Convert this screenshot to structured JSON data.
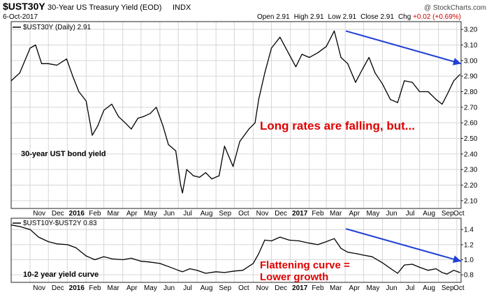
{
  "header": {
    "symbol": "$UST30Y",
    "name": "30-Year US Treasury Yield (EOD)",
    "index": "INDX",
    "date": "6-Oct-2017",
    "watermark": "@ StockCharts.com",
    "ohlc": [
      {
        "label": "Open",
        "value": "2.91"
      },
      {
        "label": "High",
        "value": "2.91"
      },
      {
        "label": "Low",
        "value": "2.91"
      },
      {
        "label": "Close",
        "value": "2.91"
      },
      {
        "label": "Chg",
        "value": "+0.02 (+0.69%)",
        "color": "#cc0000"
      }
    ]
  },
  "colors": {
    "price_line": "#000000",
    "trend_arrow": "#1f3fd6",
    "annotation_text": "#e00000",
    "grid": "#d6d6d6",
    "frame": "#222222"
  },
  "chart_data": [
    {
      "type": "line",
      "legend": "$UST30Y (Daily) 2.91",
      "annotation": "Long rates are falling, but...",
      "label": "30-year UST bond yield",
      "x_tick_labels": [
        "Nov",
        "Dec",
        "2016",
        "Feb",
        "Mar",
        "Apr",
        "May",
        "Jun",
        "Jul",
        "Aug",
        "Sep",
        "Oct",
        "Nov",
        "Dec",
        "2017",
        "Feb",
        "Mar",
        "Apr",
        "May",
        "Jun",
        "Jul",
        "Aug",
        "Sep",
        "Oct"
      ],
      "bold_x_ticks": [
        "2016",
        "2017"
      ],
      "y_tick_labels": [
        "2.10",
        "2.20",
        "2.30",
        "2.40",
        "2.50",
        "2.60",
        "2.70",
        "2.80",
        "2.90",
        "3.00",
        "3.10",
        "3.20"
      ],
      "ylim": [
        2.05,
        3.25
      ],
      "grid": true,
      "x": [
        "2015-10-01",
        "2015-10-15",
        "2015-11-01",
        "2015-11-10",
        "2015-11-20",
        "2015-12-01",
        "2015-12-15",
        "2015-12-31",
        "2016-01-10",
        "2016-01-20",
        "2016-02-01",
        "2016-02-11",
        "2016-02-20",
        "2016-03-01",
        "2016-03-14",
        "2016-03-25",
        "2016-04-05",
        "2016-04-15",
        "2016-04-26",
        "2016-05-05",
        "2016-05-16",
        "2016-05-26",
        "2016-06-06",
        "2016-06-15",
        "2016-06-27",
        "2016-07-05",
        "2016-07-08",
        "2016-07-15",
        "2016-07-26",
        "2016-08-05",
        "2016-08-15",
        "2016-08-25",
        "2016-09-06",
        "2016-09-15",
        "2016-09-29",
        "2016-10-10",
        "2016-10-25",
        "2016-11-04",
        "2016-11-10",
        "2016-11-20",
        "2016-12-01",
        "2016-12-15",
        "2016-12-30",
        "2017-01-10",
        "2017-01-20",
        "2017-02-01",
        "2017-02-15",
        "2017-03-01",
        "2017-03-14",
        "2017-03-25",
        "2017-04-05",
        "2017-04-18",
        "2017-04-30",
        "2017-05-10",
        "2017-05-20",
        "2017-06-01",
        "2017-06-14",
        "2017-06-26",
        "2017-07-07",
        "2017-07-20",
        "2017-08-01",
        "2017-08-15",
        "2017-08-28",
        "2017-09-07",
        "2017-09-15",
        "2017-09-26",
        "2017-10-06"
      ],
      "values": [
        2.87,
        2.92,
        3.08,
        3.1,
        2.98,
        2.98,
        2.97,
        3.01,
        2.9,
        2.8,
        2.74,
        2.52,
        2.58,
        2.68,
        2.72,
        2.64,
        2.6,
        2.56,
        2.63,
        2.64,
        2.66,
        2.7,
        2.58,
        2.46,
        2.42,
        2.2,
        2.15,
        2.3,
        2.26,
        2.25,
        2.28,
        2.24,
        2.26,
        2.45,
        2.32,
        2.48,
        2.56,
        2.6,
        2.75,
        2.92,
        3.08,
        3.15,
        3.04,
        2.96,
        3.04,
        3.02,
        3.05,
        3.09,
        3.19,
        3.02,
        2.98,
        2.86,
        2.95,
        3.02,
        2.92,
        2.85,
        2.75,
        2.73,
        2.87,
        2.86,
        2.8,
        2.8,
        2.75,
        2.72,
        2.78,
        2.87,
        2.91
      ],
      "trend_line": {
        "from": {
          "x": "2017-04-02",
          "y": 3.19
        },
        "to": {
          "x": "2017-10-08",
          "y": 2.98
        }
      }
    },
    {
      "type": "line",
      "legend": "$UST10Y-$UST2Y 0.83",
      "annotation": [
        "Flattening curve =",
        "Lower growth"
      ],
      "label": "10-2 year yield curve",
      "y_tick_labels": [
        "0.8",
        "1.0",
        "1.2",
        "1.4"
      ],
      "ylim": [
        0.7,
        1.55
      ],
      "grid": true,
      "x": [
        "2015-10-01",
        "2015-10-15",
        "2015-11-01",
        "2015-11-15",
        "2015-12-01",
        "2015-12-15",
        "2016-01-01",
        "2016-01-15",
        "2016-02-01",
        "2016-02-15",
        "2016-03-01",
        "2016-03-15",
        "2016-04-01",
        "2016-04-15",
        "2016-05-01",
        "2016-05-15",
        "2016-06-01",
        "2016-06-15",
        "2016-07-01",
        "2016-07-08",
        "2016-07-20",
        "2016-08-01",
        "2016-08-15",
        "2016-09-01",
        "2016-09-15",
        "2016-10-01",
        "2016-10-15",
        "2016-11-01",
        "2016-11-10",
        "2016-11-20",
        "2016-12-01",
        "2016-12-15",
        "2016-12-30",
        "2017-01-15",
        "2017-02-01",
        "2017-02-15",
        "2017-03-01",
        "2017-03-14",
        "2017-03-25",
        "2017-04-05",
        "2017-04-20",
        "2017-05-01",
        "2017-05-15",
        "2017-06-01",
        "2017-06-15",
        "2017-06-26",
        "2017-07-07",
        "2017-07-20",
        "2017-08-01",
        "2017-08-15",
        "2017-08-28",
        "2017-09-07",
        "2017-09-15",
        "2017-09-26",
        "2017-10-06"
      ],
      "values": [
        1.46,
        1.44,
        1.4,
        1.3,
        1.24,
        1.21,
        1.2,
        1.16,
        1.05,
        1.0,
        1.04,
        1.01,
        1.0,
        1.02,
        0.98,
        0.97,
        0.95,
        0.91,
        0.86,
        0.84,
        0.88,
        0.86,
        0.82,
        0.84,
        0.83,
        0.85,
        0.86,
        0.95,
        1.08,
        1.26,
        1.25,
        1.3,
        1.26,
        1.25,
        1.22,
        1.2,
        1.24,
        1.28,
        1.15,
        1.1,
        1.08,
        1.06,
        1.04,
        0.96,
        0.88,
        0.82,
        0.93,
        0.94,
        0.9,
        0.86,
        0.88,
        0.83,
        0.81,
        0.86,
        0.83
      ],
      "trend_line": {
        "from": {
          "x": "2017-04-02",
          "y": 1.41
        },
        "to": {
          "x": "2017-10-08",
          "y": 0.98
        }
      }
    }
  ]
}
